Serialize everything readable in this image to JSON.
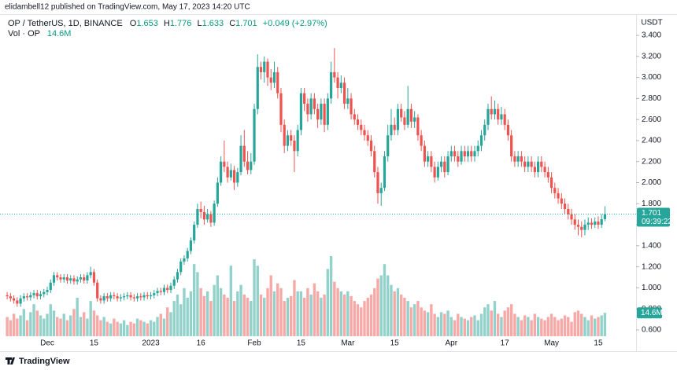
{
  "chart_data": {
    "type": "candlestick",
    "attribution": "elidambell12 published on TradingView.com, May 17, 2023 14:20 UTC",
    "symbol": "OP / TetherUS, 1D, BINANCE",
    "ohlc_keys": [
      "O",
      "H",
      "L",
      "C"
    ],
    "change_label": "+0.049 (+2.97%)",
    "volume_title": "Vol · OP",
    "volume_label": "14.6M",
    "currency": "USDT",
    "countdown": "09:39:22",
    "logo": "TradingView",
    "up_color": "#26a69a",
    "down_color": "#ef5350",
    "volume_up_color": "#93d2cb",
    "volume_down_color": "#f7a9a7",
    "categories": [
      null,
      null,
      null,
      null,
      null,
      null,
      null,
      null,
      null,
      null,
      null,
      null,
      "Dec",
      null,
      null,
      null,
      null,
      null,
      null,
      null,
      null,
      null,
      null,
      null,
      null,
      null,
      "15",
      null,
      null,
      null,
      null,
      null,
      null,
      null,
      null,
      null,
      null,
      null,
      null,
      null,
      null,
      null,
      null,
      "2023",
      null,
      null,
      null,
      null,
      null,
      null,
      null,
      null,
      null,
      null,
      null,
      null,
      null,
      null,
      "16",
      null,
      null,
      null,
      null,
      null,
      null,
      null,
      null,
      null,
      null,
      null,
      null,
      null,
      null,
      null,
      "Feb",
      null,
      null,
      null,
      null,
      null,
      null,
      null,
      null,
      null,
      null,
      null,
      null,
      null,
      "15",
      null,
      null,
      null,
      null,
      null,
      null,
      null,
      null,
      null,
      null,
      null,
      null,
      null,
      "Mar",
      null,
      null,
      null,
      null,
      null,
      null,
      null,
      null,
      null,
      null,
      null,
      null,
      null,
      "15",
      null,
      null,
      null,
      null,
      null,
      null,
      null,
      null,
      null,
      null,
      null,
      null,
      null,
      null,
      null,
      null,
      "Apr",
      null,
      null,
      null,
      null,
      null,
      null,
      null,
      null,
      null,
      null,
      null,
      null,
      null,
      null,
      null,
      "17",
      null,
      null,
      null,
      null,
      null,
      null,
      null,
      null,
      null,
      null,
      null,
      null,
      null,
      "May",
      null,
      null,
      null,
      null,
      null,
      null,
      null,
      null,
      null,
      null,
      null,
      null,
      null,
      "15",
      null,
      null
    ],
    "open": [
      0.93,
      0.92,
      0.9,
      0.88,
      0.85,
      0.9,
      0.92,
      0.91,
      0.93,
      0.95,
      0.92,
      0.94,
      0.96,
      0.98,
      1.05,
      1.12,
      1.1,
      1.08,
      1.1,
      1.07,
      1.09,
      1.06,
      1.08,
      1.1,
      1.07,
      1.12,
      1.15,
      1.05,
      0.9,
      0.88,
      0.92,
      0.9,
      0.93,
      0.92,
      0.9,
      0.91,
      0.92,
      0.93,
      0.91,
      0.9,
      0.92,
      0.91,
      0.93,
      0.92,
      0.93,
      0.95,
      0.97,
      0.96,
      1.0,
      0.98,
      1.02,
      1.08,
      1.15,
      1.25,
      1.28,
      1.35,
      1.45,
      1.6,
      1.75,
      1.72,
      1.65,
      1.7,
      1.62,
      1.8,
      2.0,
      2.2,
      2.15,
      2.05,
      2.12,
      2.0,
      2.1,
      2.35,
      2.2,
      2.12,
      2.2,
      2.7,
      3.1,
      3.05,
      3.15,
      3.0,
      2.95,
      3.05,
      2.85,
      2.55,
      2.35,
      2.45,
      2.4,
      2.3,
      2.5,
      2.85,
      2.75,
      2.65,
      2.8,
      2.7,
      2.6,
      2.75,
      2.55,
      2.8,
      3.05,
      3.0,
      2.9,
      2.95,
      2.75,
      2.8,
      2.65,
      2.6,
      2.55,
      2.5,
      2.45,
      2.4,
      2.3,
      2.1,
      1.9,
      1.95,
      2.25,
      2.45,
      2.55,
      2.5,
      2.7,
      2.62,
      2.55,
      2.7,
      2.58,
      2.62,
      2.45,
      2.35,
      2.2,
      2.25,
      2.15,
      2.05,
      2.15,
      2.2,
      2.1,
      2.25,
      2.3,
      2.25,
      2.2,
      2.3,
      2.25,
      2.3,
      2.25,
      2.3,
      2.35,
      2.45,
      2.55,
      2.7,
      2.65,
      2.7,
      2.6,
      2.65,
      2.55,
      2.45,
      2.25,
      2.2,
      2.25,
      2.2,
      2.15,
      2.2,
      2.15,
      2.1,
      2.2,
      2.15,
      2.1,
      2.05,
      1.95,
      1.9,
      1.85,
      1.8,
      1.75,
      1.7,
      1.65,
      1.6,
      1.58,
      1.55,
      1.6,
      1.62,
      1.6,
      1.63,
      1.6,
      1.653
    ],
    "high": [
      0.96,
      0.95,
      0.93,
      0.91,
      0.93,
      0.95,
      0.95,
      0.96,
      0.98,
      0.98,
      0.97,
      0.99,
      1.01,
      1.08,
      1.15,
      1.15,
      1.13,
      1.13,
      1.13,
      1.12,
      1.12,
      1.11,
      1.13,
      1.13,
      1.15,
      1.2,
      1.18,
      1.08,
      0.93,
      0.95,
      0.95,
      0.96,
      0.96,
      0.95,
      0.94,
      0.95,
      0.96,
      0.96,
      0.94,
      0.95,
      0.95,
      0.96,
      0.96,
      0.96,
      0.98,
      1.0,
      1.0,
      1.03,
      1.03,
      1.05,
      1.11,
      1.18,
      1.28,
      1.31,
      1.38,
      1.48,
      1.63,
      1.8,
      1.82,
      1.78,
      1.75,
      1.73,
      1.83,
      2.05,
      2.25,
      2.4,
      2.2,
      2.18,
      2.16,
      2.14,
      2.45,
      2.5,
      2.3,
      2.28,
      2.75,
      3.22,
      3.15,
      3.2,
      3.18,
      3.08,
      3.15,
      3.1,
      2.9,
      2.6,
      2.5,
      2.5,
      2.45,
      2.55,
      2.9,
      2.9,
      2.8,
      2.85,
      2.85,
      2.75,
      2.8,
      2.8,
      2.85,
      3.15,
      3.28,
      3.05,
      3.02,
      3.0,
      2.9,
      2.85,
      2.7,
      2.65,
      2.6,
      2.55,
      2.5,
      2.45,
      2.35,
      2.15,
      2.0,
      2.3,
      2.55,
      2.7,
      2.62,
      2.75,
      2.75,
      2.68,
      2.92,
      2.75,
      2.68,
      2.65,
      2.5,
      2.4,
      2.3,
      2.3,
      2.2,
      2.2,
      2.25,
      2.25,
      2.3,
      2.35,
      2.35,
      2.3,
      2.35,
      2.35,
      2.35,
      2.35,
      2.35,
      2.4,
      2.5,
      2.6,
      2.75,
      2.82,
      2.78,
      2.75,
      2.72,
      2.7,
      2.6,
      2.5,
      2.3,
      2.3,
      2.3,
      2.25,
      2.25,
      2.25,
      2.2,
      2.25,
      2.25,
      2.2,
      2.15,
      2.1,
      2.0,
      1.95,
      1.9,
      1.85,
      1.8,
      1.75,
      1.7,
      1.65,
      1.63,
      1.65,
      1.67,
      1.66,
      1.67,
      1.68,
      1.7,
      1.776
    ],
    "low": [
      0.89,
      0.87,
      0.85,
      0.82,
      0.82,
      0.87,
      0.88,
      0.88,
      0.9,
      0.89,
      0.89,
      0.91,
      0.93,
      0.95,
      1.02,
      1.07,
      1.05,
      1.05,
      1.04,
      1.04,
      1.03,
      1.03,
      1.05,
      1.04,
      1.04,
      1.09,
      1.02,
      0.87,
      0.85,
      0.85,
      0.87,
      0.87,
      0.89,
      0.87,
      0.87,
      0.88,
      0.89,
      0.88,
      0.87,
      0.87,
      0.88,
      0.88,
      0.89,
      0.89,
      0.9,
      0.92,
      0.93,
      0.93,
      0.95,
      0.95,
      0.99,
      1.05,
      1.12,
      1.22,
      1.25,
      1.32,
      1.42,
      1.57,
      1.66,
      1.6,
      1.62,
      1.58,
      1.59,
      1.77,
      1.97,
      2.1,
      2.0,
      2.02,
      1.93,
      1.96,
      2.07,
      2.15,
      2.08,
      2.08,
      2.17,
      2.65,
      2.98,
      2.95,
      2.92,
      2.88,
      2.9,
      2.8,
      2.48,
      2.28,
      2.3,
      2.35,
      2.1,
      2.25,
      2.45,
      2.68,
      2.58,
      2.6,
      2.65,
      2.52,
      2.55,
      2.48,
      2.5,
      2.75,
      2.95,
      2.8,
      2.85,
      2.7,
      2.7,
      2.6,
      2.55,
      2.5,
      2.45,
      2.4,
      2.35,
      2.25,
      2.05,
      1.8,
      1.78,
      1.92,
      2.2,
      2.4,
      2.45,
      2.45,
      2.58,
      2.5,
      2.52,
      2.52,
      2.52,
      2.4,
      2.3,
      2.15,
      2.15,
      2.1,
      2.0,
      2.02,
      2.1,
      2.05,
      2.07,
      2.2,
      2.2,
      2.15,
      2.17,
      2.2,
      2.2,
      2.2,
      2.2,
      2.25,
      2.3,
      2.4,
      2.5,
      2.6,
      2.6,
      2.55,
      2.55,
      2.5,
      2.4,
      2.2,
      2.15,
      2.15,
      2.15,
      2.1,
      2.1,
      2.1,
      2.05,
      2.05,
      2.1,
      2.05,
      2.0,
      1.9,
      1.85,
      1.8,
      1.75,
      1.7,
      1.65,
      1.6,
      1.55,
      1.5,
      1.48,
      1.5,
      1.55,
      1.56,
      1.57,
      1.56,
      1.57,
      1.633
    ],
    "close": [
      0.92,
      0.9,
      0.88,
      0.85,
      0.9,
      0.92,
      0.91,
      0.93,
      0.95,
      0.92,
      0.94,
      0.96,
      0.98,
      1.05,
      1.12,
      1.1,
      1.08,
      1.1,
      1.07,
      1.09,
      1.06,
      1.08,
      1.1,
      1.07,
      1.12,
      1.15,
      1.05,
      0.9,
      0.88,
      0.92,
      0.9,
      0.93,
      0.92,
      0.9,
      0.91,
      0.92,
      0.93,
      0.91,
      0.9,
      0.92,
      0.91,
      0.93,
      0.92,
      0.93,
      0.95,
      0.97,
      0.96,
      1.0,
      0.98,
      1.02,
      1.08,
      1.15,
      1.25,
      1.28,
      1.35,
      1.45,
      1.6,
      1.75,
      1.72,
      1.65,
      1.7,
      1.62,
      1.8,
      2.0,
      2.2,
      2.15,
      2.05,
      2.12,
      2.0,
      2.1,
      2.35,
      2.2,
      2.12,
      2.2,
      2.7,
      3.1,
      3.05,
      3.15,
      3.0,
      2.95,
      3.05,
      2.85,
      2.55,
      2.35,
      2.45,
      2.4,
      2.3,
      2.5,
      2.85,
      2.75,
      2.65,
      2.8,
      2.7,
      2.6,
      2.75,
      2.55,
      2.8,
      3.05,
      3.0,
      2.9,
      2.95,
      2.75,
      2.8,
      2.65,
      2.6,
      2.55,
      2.5,
      2.45,
      2.4,
      2.3,
      2.1,
      1.9,
      1.95,
      2.25,
      2.45,
      2.55,
      2.5,
      2.7,
      2.62,
      2.55,
      2.7,
      2.58,
      2.62,
      2.45,
      2.35,
      2.2,
      2.25,
      2.15,
      2.05,
      2.15,
      2.2,
      2.1,
      2.25,
      2.3,
      2.25,
      2.2,
      2.3,
      2.25,
      2.3,
      2.25,
      2.3,
      2.35,
      2.45,
      2.55,
      2.7,
      2.65,
      2.7,
      2.6,
      2.65,
      2.55,
      2.45,
      2.25,
      2.2,
      2.25,
      2.2,
      2.15,
      2.2,
      2.15,
      2.1,
      2.2,
      2.15,
      2.1,
      2.05,
      1.95,
      1.9,
      1.85,
      1.8,
      1.75,
      1.7,
      1.65,
      1.6,
      1.58,
      1.55,
      1.6,
      1.62,
      1.6,
      1.63,
      1.6,
      1.653,
      1.701
    ],
    "volume": [
      12,
      10,
      14,
      11,
      13,
      17,
      10,
      15,
      20,
      16,
      13,
      11,
      14,
      20,
      16,
      12,
      11,
      14,
      10,
      13,
      17,
      24,
      12,
      15,
      11,
      22,
      16,
      13,
      10,
      12,
      9,
      8,
      11,
      9,
      8,
      10,
      7,
      9,
      8,
      11,
      10,
      9,
      8,
      10,
      9,
      12,
      14,
      11,
      18,
      15,
      22,
      26,
      20,
      30,
      24,
      28,
      45,
      40,
      30,
      25,
      28,
      22,
      32,
      38,
      30,
      26,
      24,
      44,
      22,
      28,
      32,
      26,
      24,
      22,
      48,
      44,
      26,
      24,
      30,
      38,
      28,
      33,
      30,
      22,
      24,
      25,
      35,
      28,
      28,
      24,
      30,
      26,
      33,
      28,
      24,
      26,
      42,
      50,
      34,
      30,
      28,
      26,
      28,
      25,
      22,
      20,
      18,
      22,
      24,
      26,
      30,
      36,
      38,
      45,
      38,
      32,
      28,
      30,
      26,
      24,
      22,
      18,
      20,
      22,
      18,
      16,
      15,
      20,
      14,
      12,
      15,
      14,
      16,
      12,
      10,
      14,
      12,
      11,
      10,
      12,
      13,
      10,
      14,
      18,
      20,
      16,
      22,
      14,
      12,
      16,
      18,
      20,
      14,
      12,
      10,
      13,
      12,
      10,
      14,
      12,
      11,
      10,
      12,
      14,
      12,
      10,
      11,
      13,
      12,
      9,
      15,
      16,
      14,
      12,
      10,
      13,
      11,
      12,
      13,
      14.6
    ],
    "ylim": [
      0.54,
      3.587
    ],
    "volume_ylim": [
      0,
      200
    ],
    "yticks": [
      {
        "value": 0.6,
        "label": "0.600"
      },
      {
        "value": 0.8,
        "label": "0.800"
      },
      {
        "value": 1.0,
        "label": "1.000"
      },
      {
        "value": 1.2,
        "label": "1.200"
      },
      {
        "value": 1.4,
        "label": "1.400"
      },
      {
        "value": 1.6,
        "label": "1.600"
      },
      {
        "value": 1.8,
        "label": "1.800"
      },
      {
        "value": 2.0,
        "label": "2.000"
      },
      {
        "value": 2.2,
        "label": "2.200"
      },
      {
        "value": 2.4,
        "label": "2.400"
      },
      {
        "value": 2.6,
        "label": "2.600"
      },
      {
        "value": 2.8,
        "label": "2.800"
      },
      {
        "value": 3.0,
        "label": "3.000"
      },
      {
        "value": 3.2,
        "label": "3.200"
      },
      {
        "value": 3.4,
        "label": "3.400"
      }
    ],
    "grid": false
  }
}
